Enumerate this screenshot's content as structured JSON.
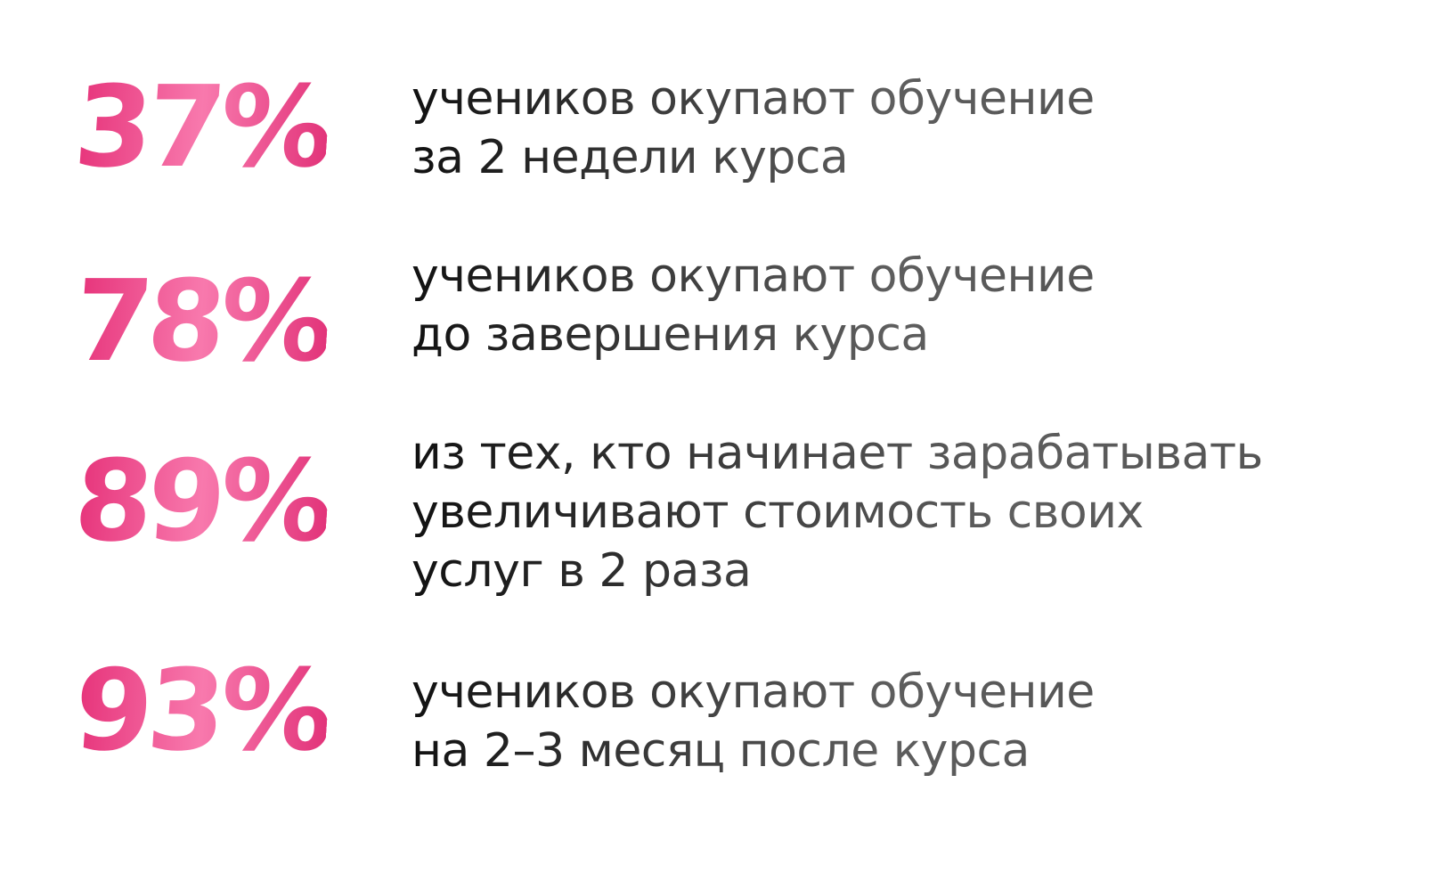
{
  "stats": [
    {
      "value": "37%",
      "lines": [
        "учеников окупают обучение",
        "за 2 недели курса"
      ]
    },
    {
      "value": "78%",
      "lines": [
        "учеников окупают обучение",
        "до завершения курса"
      ]
    },
    {
      "value": "89%",
      "lines": [
        "из тех, кто начинает зарабатывать",
        "увеличивают стоимость своих",
        "услуг в 2 раза"
      ]
    },
    {
      "value": "93%",
      "lines": [
        "учеников окупают обучение",
        "на 2–3 месяц после курса"
      ]
    }
  ],
  "colors": {
    "accent_start": "#e6337a",
    "accent_mid": "#f879ad",
    "text_dark": "#111111",
    "text_gray": "#5e5e5e"
  }
}
